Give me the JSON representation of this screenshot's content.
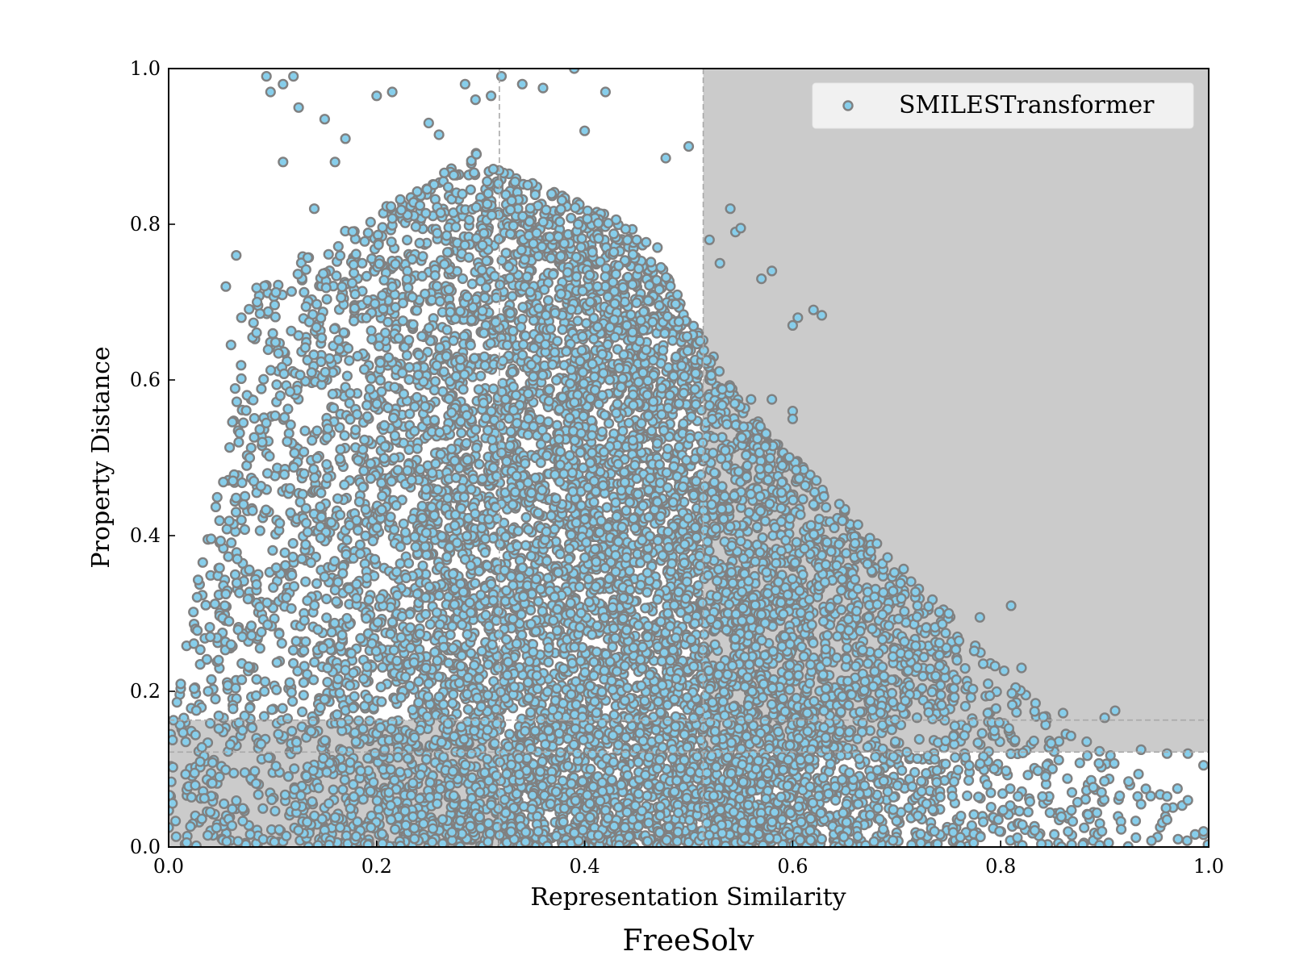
{
  "chart_data": {
    "type": "scatter",
    "title": "FreeSolv",
    "xlabel": "Representation Similarity",
    "ylabel": "Property Distance",
    "xlim": [
      0.0,
      1.0
    ],
    "ylim": [
      0.0,
      1.0
    ],
    "xticks": [
      "0.0",
      "0.2",
      "0.4",
      "0.6",
      "0.8",
      "1.0"
    ],
    "yticks": [
      "0.0",
      "0.2",
      "0.4",
      "0.6",
      "0.8",
      "1.0"
    ],
    "grid": false,
    "legend": {
      "position": "top-right",
      "entries": [
        "SMILESTransformer"
      ]
    },
    "series": [
      {
        "name": "SMILESTransformer",
        "marker_fill": "#87CEEB",
        "marker_edge": "#808080"
      }
    ],
    "threshold_lines": {
      "x_vertical": [
        0.318,
        0.514
      ],
      "y_horizontal": [
        0.122,
        0.163
      ]
    },
    "shaded_regions": [
      {
        "name": "low-similarity-low-distance",
        "x_range": [
          0.0,
          0.318
        ],
        "y_range": [
          0.0,
          0.163
        ]
      },
      {
        "name": "high-similarity-high-distance",
        "x_range": [
          0.514,
          1.0
        ],
        "y_range": [
          0.122,
          1.0
        ]
      }
    ],
    "sample_points": [
      [
        0.094,
        0.99
      ],
      [
        0.098,
        0.97
      ],
      [
        0.12,
        0.99
      ],
      [
        0.11,
        0.98
      ],
      [
        0.285,
        0.98
      ],
      [
        0.32,
        0.99
      ],
      [
        0.39,
        1.0
      ],
      [
        0.34,
        0.98
      ],
      [
        0.42,
        0.97
      ],
      [
        0.295,
        0.96
      ],
      [
        0.31,
        0.965
      ],
      [
        0.36,
        0.975
      ],
      [
        0.2,
        0.965
      ],
      [
        0.215,
        0.97
      ],
      [
        0.055,
        0.72
      ],
      [
        0.065,
        0.76
      ],
      [
        0.06,
        0.645
      ],
      [
        0.085,
        0.7
      ],
      [
        0.07,
        0.68
      ],
      [
        0.4,
        0.92
      ],
      [
        0.5,
        0.9
      ],
      [
        0.478,
        0.885
      ],
      [
        0.54,
        0.82
      ],
      [
        0.545,
        0.79
      ],
      [
        0.55,
        0.795
      ],
      [
        0.57,
        0.73
      ],
      [
        0.58,
        0.74
      ],
      [
        0.605,
        0.68
      ],
      [
        0.62,
        0.69
      ],
      [
        0.628,
        0.683
      ],
      [
        0.6,
        0.67
      ],
      [
        0.6,
        0.56
      ],
      [
        0.6,
        0.55
      ],
      [
        0.58,
        0.575
      ],
      [
        0.56,
        0.575
      ],
      [
        0.59,
        0.49
      ],
      [
        0.62,
        0.44
      ],
      [
        0.64,
        0.41
      ],
      [
        0.66,
        0.39
      ],
      [
        0.675,
        0.38
      ],
      [
        0.72,
        0.31
      ],
      [
        0.75,
        0.3
      ],
      [
        0.78,
        0.295
      ],
      [
        0.81,
        0.31
      ],
      [
        0.76,
        0.265
      ],
      [
        0.82,
        0.23
      ],
      [
        0.86,
        0.172
      ],
      [
        0.9,
        0.166
      ],
      [
        0.91,
        0.175
      ],
      [
        0.935,
        0.125
      ],
      [
        0.96,
        0.12
      ],
      [
        0.98,
        0.12
      ],
      [
        0.995,
        0.105
      ],
      [
        0.96,
        0.065
      ],
      [
        0.97,
        0.075
      ],
      [
        0.98,
        0.06
      ],
      [
        0.995,
        0.02
      ],
      [
        0.935,
        0.055
      ],
      [
        0.93,
        0.012
      ],
      [
        0.945,
        0.008
      ],
      [
        0.96,
        0.035
      ],
      [
        0.0,
        0.025
      ],
      [
        0.025,
        0.095
      ],
      [
        0.032,
        0.128
      ],
      [
        0.04,
        0.045
      ],
      [
        0.042,
        0.082
      ],
      [
        0.038,
        0.2
      ],
      [
        0.045,
        0.19
      ],
      [
        0.04,
        0.27
      ],
      [
        0.048,
        0.24
      ],
      [
        0.054,
        0.31
      ],
      [
        0.055,
        0.325
      ],
      [
        0.058,
        0.29
      ],
      [
        0.06,
        0.26
      ],
      [
        0.064,
        0.35
      ],
      [
        0.066,
        0.37
      ],
      [
        0.07,
        0.42
      ],
      [
        0.072,
        0.44
      ],
      [
        0.075,
        0.49
      ],
      [
        0.078,
        0.5
      ],
      [
        0.09,
        0.52
      ],
      [
        0.095,
        0.48
      ],
      [
        0.125,
        0.95
      ],
      [
        0.15,
        0.935
      ],
      [
        0.17,
        0.91
      ],
      [
        0.16,
        0.88
      ],
      [
        0.11,
        0.88
      ],
      [
        0.14,
        0.82
      ],
      [
        0.25,
        0.93
      ],
      [
        0.26,
        0.915
      ],
      [
        0.45,
        0.78
      ],
      [
        0.47,
        0.77
      ],
      [
        0.52,
        0.78
      ],
      [
        0.53,
        0.75
      ]
    ]
  }
}
